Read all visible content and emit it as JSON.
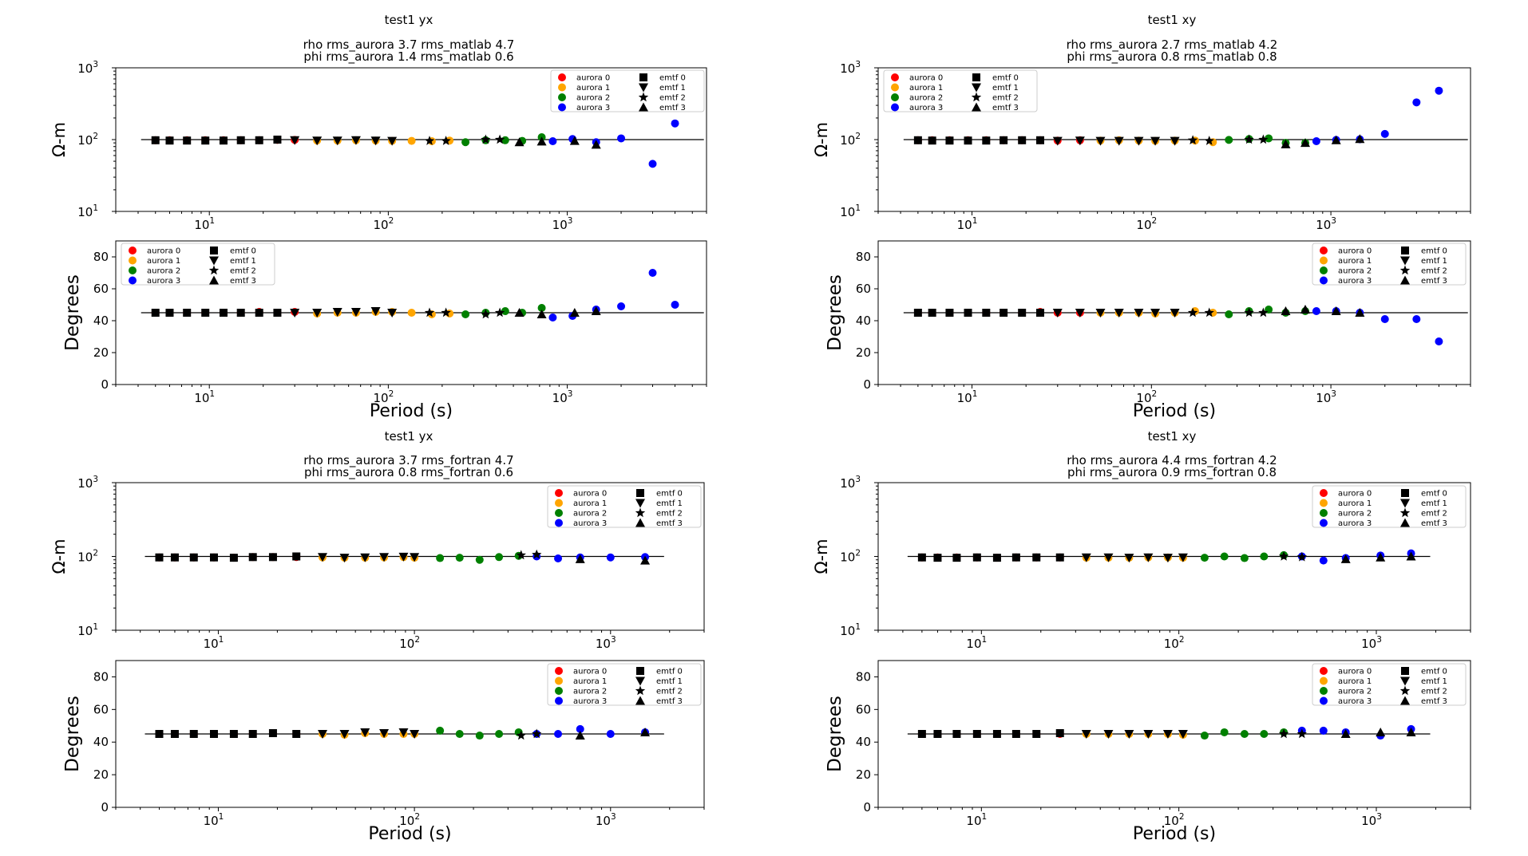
{
  "labels": {
    "xlabel": "Period (s)",
    "rho_ylabel": "Ω-m",
    "phi_ylabel": "Degrees",
    "x_ticks": [
      "10",
      "10",
      "10"
    ],
    "x_tick_exps": [
      "1",
      "2",
      "3"
    ],
    "rho_ticks": [
      "10",
      "10",
      "10"
    ],
    "rho_tick_exps": [
      "1",
      "2",
      "3"
    ],
    "phi_ticks": [
      "0",
      "20",
      "40",
      "60",
      "80"
    ]
  },
  "legend": {
    "aurora": [
      "aurora 0",
      "aurora 1",
      "aurora 2",
      "aurora 3"
    ],
    "emtf": [
      "emtf 0",
      "emtf 1",
      "emtf 2",
      "emtf 3"
    ]
  },
  "colors": {
    "aurora_0": "#ff0000",
    "aurora_1": "#ffa500",
    "aurora_2": "#008000",
    "aurora_3": "#0000ff",
    "emtf": "#000000",
    "ref_line": "#000000"
  },
  "chart_data": [
    {
      "type": "scatter",
      "title": "test1 yx",
      "subtitle1": "rho rms_aurora 3.7 rms_matlab 4.7",
      "subtitle2": "phi rms_aurora 1.4 rms_matlab 0.6",
      "xscale": "log",
      "xlim": [
        3,
        6000
      ],
      "rho_ylim": [
        10,
        1000
      ],
      "phi_ylim": [
        0,
        90
      ],
      "rho_ref": 100,
      "phi_ref": 45,
      "aurora": [
        {
          "name": "aurora 0",
          "period": [
            5,
            6,
            7.5,
            9.5,
            12,
            15,
            19,
            24,
            30
          ],
          "rho": [
            98,
            98,
            98,
            98,
            98,
            98,
            98,
            99,
            99
          ],
          "phi": [
            45,
            45,
            45,
            45,
            45,
            45,
            45.5,
            45,
            45.5
          ]
        },
        {
          "name": "aurora 1",
          "period": [
            40,
            52,
            66,
            85,
            105,
            135,
            175,
            220
          ],
          "rho": [
            97,
            97,
            98,
            97,
            96,
            96,
            95,
            97
          ],
          "phi": [
            44.5,
            45,
            45,
            45.5,
            45.5,
            45,
            44,
            44.5
          ]
        },
        {
          "name": "aurora 2",
          "period": [
            270,
            350,
            450,
            560,
            720
          ],
          "rho": [
            92,
            98,
            98,
            96,
            108
          ],
          "phi": [
            44,
            45,
            46,
            45,
            48
          ]
        },
        {
          "name": "aurora 3",
          "period": [
            830,
            1070,
            1450,
            2000,
            3000,
            4000
          ],
          "rho": [
            95,
            102,
            92,
            104,
            46,
            168
          ],
          "phi": [
            42,
            43,
            47,
            49,
            70,
            50
          ]
        }
      ],
      "emtf": [
        {
          "name": "emtf 0",
          "marker": "square",
          "period": [
            5,
            6,
            7.5,
            9.5,
            12,
            15,
            19,
            24
          ],
          "rho": [
            98,
            97,
            97,
            97,
            97,
            98,
            98,
            100
          ],
          "phi": [
            45,
            45,
            45,
            45,
            45,
            45,
            45,
            45
          ]
        },
        {
          "name": "emtf 1",
          "marker": "triangle-down",
          "period": [
            30,
            40,
            52,
            66,
            85,
            105
          ],
          "rho": [
            98,
            97,
            97,
            98,
            97,
            96
          ],
          "phi": [
            45,
            45,
            45.5,
            45.5,
            46,
            45
          ]
        },
        {
          "name": "emtf 2",
          "marker": "star",
          "period": [
            170,
            210,
            350,
            420
          ],
          "rho": [
            96,
            96,
            100,
            100
          ],
          "phi": [
            45,
            45,
            44,
            45
          ]
        },
        {
          "name": "emtf 3",
          "marker": "triangle-up",
          "period": [
            540,
            720,
            1100,
            1450
          ],
          "rho": [
            92,
            94,
            96,
            85
          ],
          "phi": [
            45,
            44,
            45,
            46
          ]
        }
      ]
    },
    {
      "type": "scatter",
      "title": "test1 xy",
      "subtitle1": "rho rms_aurora 2.7 rms_matlab 4.2",
      "subtitle2": "phi rms_aurora 0.8 rms_matlab 0.8",
      "xscale": "log",
      "xlim": [
        3,
        6000
      ],
      "rho_ylim": [
        10,
        1000
      ],
      "phi_ylim": [
        0,
        90
      ],
      "rho_ref": 100,
      "phi_ref": 45,
      "aurora": [
        {
          "name": "aurora 0",
          "period": [
            5,
            6,
            7.5,
            9.5,
            12,
            15,
            19,
            24,
            30,
            40
          ],
          "rho": [
            98,
            98,
            98,
            98,
            98,
            98,
            98,
            98,
            97,
            98
          ],
          "phi": [
            45,
            45,
            45,
            45,
            45,
            45,
            45,
            45.5,
            45,
            45
          ]
        },
        {
          "name": "aurora 1",
          "period": [
            52,
            66,
            85,
            105,
            135,
            175,
            220
          ],
          "rho": [
            97,
            98,
            97,
            96,
            97,
            97,
            92
          ],
          "phi": [
            45,
            45,
            45,
            44.5,
            45,
            46,
            45
          ]
        },
        {
          "name": "aurora 2",
          "period": [
            270,
            350,
            450,
            560,
            720
          ],
          "rho": [
            99,
            102,
            104,
            90,
            90
          ],
          "phi": [
            44,
            46,
            47,
            45,
            46
          ]
        },
        {
          "name": "aurora 3",
          "period": [
            830,
            1070,
            1450,
            2000,
            3000,
            4000
          ],
          "rho": [
            95,
            99,
            101,
            120,
            330,
            480
          ],
          "phi": [
            46,
            46,
            45,
            41,
            41,
            27
          ]
        }
      ],
      "emtf": [
        {
          "name": "emtf 0",
          "marker": "square",
          "period": [
            5,
            6,
            7.5,
            9.5,
            12,
            15,
            19,
            24
          ],
          "rho": [
            98,
            97,
            97,
            97,
            97,
            98,
            98,
            98
          ],
          "phi": [
            45,
            45,
            45,
            45,
            45,
            45,
            45,
            45
          ]
        },
        {
          "name": "emtf 1",
          "marker": "triangle-down",
          "period": [
            30,
            40,
            52,
            66,
            85,
            105,
            135
          ],
          "rho": [
            96,
            97,
            96,
            96,
            96,
            96,
            96
          ],
          "phi": [
            45,
            45,
            45,
            45,
            45,
            45,
            45
          ]
        },
        {
          "name": "emtf 2",
          "marker": "star",
          "period": [
            170,
            210,
            350,
            420
          ],
          "rho": [
            98,
            96,
            100,
            100
          ],
          "phi": [
            45,
            45,
            45,
            45
          ]
        },
        {
          "name": "emtf 3",
          "marker": "triangle-up",
          "period": [
            560,
            720,
            1070,
            1450
          ],
          "rho": [
            86,
            90,
            98,
            102
          ],
          "phi": [
            46,
            47,
            46,
            45
          ]
        }
      ]
    },
    {
      "type": "scatter",
      "title": "test1 yx",
      "subtitle1": "rho rms_aurora 3.7 rms_fortran 4.7",
      "subtitle2": "phi rms_aurora 0.8 rms_fortran 0.6",
      "xscale": "log",
      "xlim": [
        3,
        3000
      ],
      "rho_ylim": [
        10,
        1000
      ],
      "phi_ylim": [
        0,
        90
      ],
      "rho_ref": 100,
      "phi_ref": 45,
      "aurora": [
        {
          "name": "aurora 0",
          "period": [
            5,
            6,
            7.5,
            9.5,
            12,
            15,
            19,
            25
          ],
          "rho": [
            97,
            97,
            97,
            97,
            96,
            98,
            98,
            98
          ],
          "phi": [
            45,
            45,
            45,
            45,
            45,
            45,
            45.5,
            45
          ]
        },
        {
          "name": "aurora 1",
          "period": [
            34,
            44,
            56,
            70,
            88,
            100
          ],
          "rho": [
            97,
            96,
            96,
            97,
            98,
            96
          ],
          "phi": [
            45,
            44.5,
            45.5,
            45,
            45,
            45
          ]
        },
        {
          "name": "aurora 2",
          "period": [
            135,
            170,
            215,
            270,
            340
          ],
          "rho": [
            95,
            96,
            90,
            98,
            102
          ],
          "phi": [
            47,
            45,
            44,
            45,
            46
          ]
        },
        {
          "name": "aurora 3",
          "period": [
            420,
            540,
            700,
            1000,
            1500
          ],
          "rho": [
            100,
            94,
            97,
            97,
            98
          ],
          "phi": [
            45,
            45,
            48,
            45,
            46
          ]
        }
      ],
      "emtf": [
        {
          "name": "emtf 0",
          "marker": "square",
          "period": [
            5,
            6,
            7.5,
            9.5,
            12,
            15,
            19,
            25
          ],
          "rho": [
            97,
            97,
            97,
            97,
            96,
            98,
            98,
            100
          ],
          "phi": [
            45,
            45,
            45,
            45,
            45,
            45,
            45.5,
            45
          ]
        },
        {
          "name": "emtf 1",
          "marker": "triangle-down",
          "period": [
            34,
            44,
            56,
            70,
            88,
            100
          ],
          "rho": [
            98,
            96,
            97,
            98,
            99,
            98
          ],
          "phi": [
            45,
            45,
            46,
            45.5,
            46,
            45
          ]
        },
        {
          "name": "emtf 2",
          "marker": "star",
          "period": [
            350,
            420
          ],
          "rho": [
            104,
            106
          ],
          "phi": [
            44,
            45
          ]
        },
        {
          "name": "emtf 3",
          "marker": "triangle-up",
          "period": [
            700,
            1500
          ],
          "rho": [
            92,
            88
          ],
          "phi": [
            44,
            46
          ]
        }
      ]
    },
    {
      "type": "scatter",
      "title": "test1 xy",
      "subtitle1": "rho rms_aurora 4.4 rms_fortran 4.2",
      "subtitle2": "phi rms_aurora 0.9 rms_fortran 0.8",
      "xscale": "log",
      "xlim": [
        3,
        3000
      ],
      "rho_ylim": [
        10,
        1000
      ],
      "phi_ylim": [
        0,
        90
      ],
      "rho_ref": 100,
      "phi_ref": 45,
      "aurora": [
        {
          "name": "aurora 0",
          "period": [
            5,
            6,
            7.5,
            9.5,
            12,
            15,
            19,
            25
          ],
          "rho": [
            97,
            97,
            97,
            97,
            96,
            97,
            97,
            97
          ],
          "phi": [
            45,
            45,
            45,
            45,
            45,
            45,
            45,
            45
          ]
        },
        {
          "name": "aurora 1",
          "period": [
            34,
            44,
            56,
            70,
            88,
            105
          ],
          "rho": [
            96,
            96,
            96,
            97,
            97,
            96
          ],
          "phi": [
            45,
            45,
            45,
            45,
            45,
            44.5
          ]
        },
        {
          "name": "aurora 2",
          "period": [
            135,
            170,
            215,
            270,
            340
          ],
          "rho": [
            96,
            100,
            95,
            100,
            104
          ],
          "phi": [
            44,
            46,
            45,
            45,
            46
          ]
        },
        {
          "name": "aurora 3",
          "period": [
            420,
            540,
            700,
            1050,
            1500
          ],
          "rho": [
            100,
            88,
            95,
            103,
            110
          ],
          "phi": [
            47,
            47,
            46,
            44,
            48
          ]
        }
      ],
      "emtf": [
        {
          "name": "emtf 0",
          "marker": "square",
          "period": [
            5,
            6,
            7.5,
            9.5,
            12,
            15,
            19,
            25
          ],
          "rho": [
            97,
            96,
            96,
            97,
            96,
            97,
            97,
            97
          ],
          "phi": [
            45,
            45,
            45,
            45,
            45,
            45,
            45,
            45.5
          ]
        },
        {
          "name": "emtf 1",
          "marker": "triangle-down",
          "period": [
            34,
            44,
            56,
            70,
            88,
            105
          ],
          "rho": [
            97,
            97,
            96,
            97,
            96,
            97
          ],
          "phi": [
            45,
            45,
            45,
            45,
            45,
            45
          ]
        },
        {
          "name": "emtf 2",
          "marker": "star",
          "period": [
            340,
            420
          ],
          "rho": [
            100,
            98
          ],
          "phi": [
            45,
            45
          ]
        },
        {
          "name": "emtf 3",
          "marker": "triangle-up",
          "period": [
            700,
            1050,
            1500
          ],
          "rho": [
            92,
            97,
            100
          ],
          "phi": [
            45,
            46,
            46
          ]
        }
      ]
    }
  ]
}
